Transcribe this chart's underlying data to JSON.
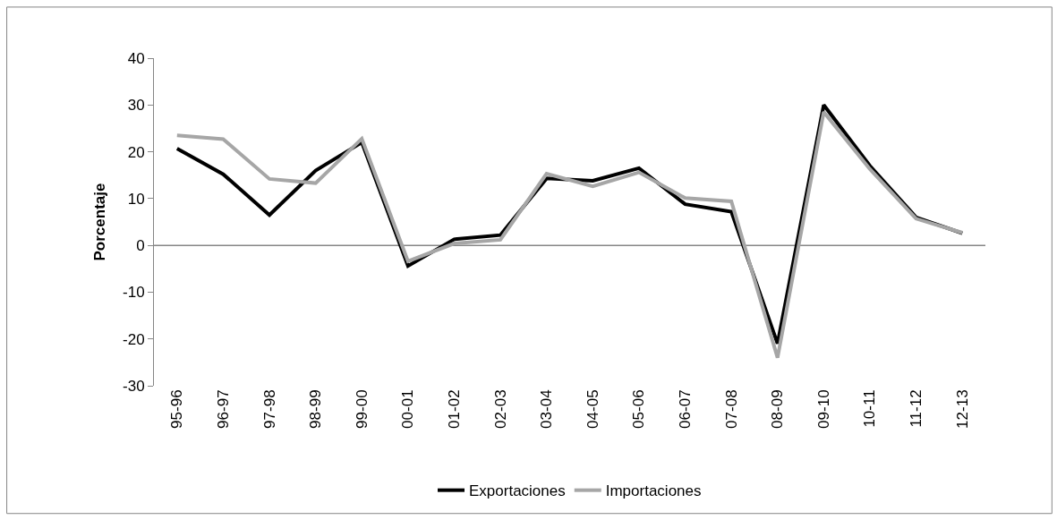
{
  "chart_data": {
    "type": "line",
    "ylabel": "Porcentaje",
    "categories": [
      "95-96",
      "96-97",
      "97-98",
      "98-99",
      "99-00",
      "00-01",
      "01-02",
      "02-03",
      "03-04",
      "04-05",
      "05-06",
      "06-07",
      "07-08",
      "08-09",
      "09-10",
      "10-11",
      "11-12",
      "12-13"
    ],
    "series": [
      {
        "name": "Exportaciones",
        "color": "#000000",
        "values": [
          20.7,
          15.2,
          6.5,
          16,
          22,
          -4.4,
          1.3,
          2.2,
          14.3,
          13.8,
          16.5,
          8.8,
          7.2,
          -21,
          30,
          17,
          6,
          2.6
        ]
      },
      {
        "name": "Importaciones",
        "color": "#a6a6a6",
        "values": [
          23.5,
          22.7,
          14.2,
          13.3,
          22.8,
          -3.4,
          0.4,
          1.2,
          15.3,
          12.6,
          15.6,
          10.1,
          9.4,
          -24,
          28.5,
          16.3,
          5.7,
          2.7
        ]
      }
    ],
    "ylim": [
      -30,
      40
    ],
    "yticks": [
      -30,
      -20,
      -10,
      0,
      10,
      20,
      30,
      40
    ],
    "grid": false,
    "ref_lines": [
      {
        "axis": "y",
        "value": 0,
        "color": "#868686"
      }
    ],
    "legend": "bottom",
    "marker": "none",
    "line_style": "solid"
  }
}
